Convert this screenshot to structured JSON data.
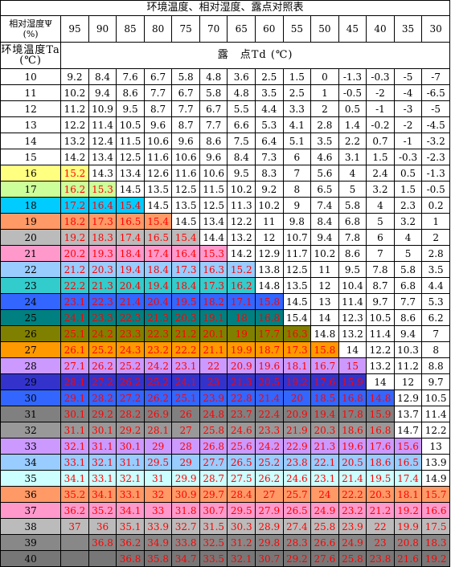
{
  "title": "环境温度、相对湿度、露点对照表",
  "rh_label": "相对湿度Ψ\n(%)",
  "ta_label": "环境温度Ta\n(℃)",
  "td_label": "露　点Td (℃)",
  "humidity": [
    "95",
    "90",
    "85",
    "80",
    "75",
    "70",
    "65",
    "60",
    "55",
    "50",
    "45",
    "40",
    "35",
    "30"
  ],
  "rows": [
    {
      "t": "10",
      "c": "#ffffff",
      "v": [
        "9.2",
        "8.4",
        "7.6",
        "6.7",
        "5.8",
        "4.8",
        "3.6",
        "2.5",
        "1.5",
        "0",
        "-1.3",
        "-0.3",
        "-5",
        "-7"
      ],
      "n": 0
    },
    {
      "t": "11",
      "c": "#ffffff",
      "v": [
        "10.2",
        "9.4",
        "8.6",
        "7.7",
        "6.7",
        "5.8",
        "4.8",
        "3.5",
        "2.5",
        "1",
        "-0.5",
        "-2",
        "-4",
        "-6.5"
      ],
      "n": 0
    },
    {
      "t": "12",
      "c": "#ffffff",
      "v": [
        "11.2",
        "10.9",
        "9.5",
        "8.7",
        "7.7",
        "6.7",
        "5.5",
        "4.4",
        "3.3",
        "2",
        "0.5",
        "-1",
        "-3",
        "-5"
      ],
      "n": 0
    },
    {
      "t": "13",
      "c": "#ffffff",
      "v": [
        "12.2",
        "11.4",
        "10.5",
        "9.6",
        "8.7",
        "7.7",
        "6.6",
        "5.3",
        "4.1",
        "2.8",
        "1.4",
        "-0.2",
        "-2",
        "-4.5"
      ],
      "n": 0
    },
    {
      "t": "14",
      "c": "#ffffff",
      "v": [
        "13.2",
        "12.4",
        "11.5",
        "10.6",
        "9.6",
        "8.6",
        "7.5",
        "6.4",
        "5.1",
        "3.5",
        "2.2",
        "0.7",
        "-1",
        "-3.2"
      ],
      "n": 0
    },
    {
      "t": "15",
      "c": "#ffffff",
      "v": [
        "14.2",
        "13.4",
        "12.5",
        "11.6",
        "10.6",
        "9.6",
        "8.4",
        "7.3",
        "6",
        "4.6",
        "3.1",
        "1.5",
        "-0.3",
        "-2.3"
      ],
      "n": 0
    },
    {
      "t": "16",
      "c": "#ffff80",
      "v": [
        "15.2",
        "14.3",
        "13.4",
        "12.6",
        "11.6",
        "10.6",
        "9.5",
        "8.3",
        "7",
        "5.6",
        "4",
        "2.4",
        "0.5",
        "-1.3"
      ],
      "n": 1
    },
    {
      "t": "17",
      "c": "#ccff99",
      "v": [
        "16.2",
        "15.3",
        "14.5",
        "13.5",
        "12.5",
        "11.5",
        "10.2",
        "9.2",
        "8",
        "6.5",
        "5",
        "3.2",
        "1.5",
        "-0.5"
      ],
      "n": 2
    },
    {
      "t": "18",
      "c": "#00ccff",
      "v": [
        "17.2",
        "16.4",
        "15.4",
        "14.5",
        "13.5",
        "12.5",
        "11.3",
        "10.2",
        "9",
        "7.4",
        "5.8",
        "4",
        "2.3",
        "0.2"
      ],
      "n": 3
    },
    {
      "t": "19",
      "c": "#ff9966",
      "v": [
        "18.2",
        "17.3",
        "16.5",
        "15.4",
        "14.5",
        "13.4",
        "12.2",
        "11",
        "9.8",
        "8.4",
        "6.8",
        "5",
        "3.2",
        "1"
      ],
      "n": 4
    },
    {
      "t": "20",
      "c": "#bbbbbb",
      "v": [
        "19.2",
        "18.3",
        "17.4",
        "16.5",
        "15.4",
        "14.4",
        "13.2",
        "12",
        "10.7",
        "9.4",
        "7.8",
        "6",
        "4",
        "2"
      ],
      "n": 5
    },
    {
      "t": "21",
      "c": "#ff99cc",
      "v": [
        "20.2",
        "19.3",
        "18.4",
        "17.4",
        "16.4",
        "15.3",
        "14.2",
        "12.9",
        "11.7",
        "10.2",
        "8.6",
        "7",
        "5",
        "2.8"
      ],
      "n": 6
    },
    {
      "t": "22",
      "c": "#99ccff",
      "v": [
        "21.2",
        "20.3",
        "19.4",
        "18.4",
        "17.3",
        "16.3",
        "15.2",
        "13.8",
        "12.5",
        "11",
        "9.5",
        "7.8",
        "5.8",
        "3.5"
      ],
      "n": 7
    },
    {
      "t": "23",
      "c": "#33cccc",
      "v": [
        "22.2",
        "21.3",
        "20.4",
        "19.4",
        "18.4",
        "17.3",
        "16.2",
        "14.8",
        "13.5",
        "12",
        "10.4",
        "8.7",
        "6.8",
        "4.4"
      ],
      "n": 7
    },
    {
      "t": "24",
      "c": "#3366ff",
      "v": [
        "23.1",
        "22.3",
        "21.4",
        "20.4",
        "19.5",
        "18.2",
        "17.1",
        "15.8",
        "14.5",
        "13",
        "11.4",
        "9.7",
        "7.7",
        "5.3"
      ],
      "n": 8
    },
    {
      "t": "25",
      "c": "#008080",
      "v": [
        "24.1",
        "23.3",
        "22.3",
        "21.3",
        "20.3",
        "19.1",
        "18",
        "16.8",
        "15.4",
        "14",
        "12.3",
        "10.5",
        "8.6",
        "6.2"
      ],
      "n": 8
    },
    {
      "t": "26",
      "c": "#808000",
      "v": [
        "25.1",
        "24.2",
        "23.3",
        "22.3",
        "21.2",
        "20.1",
        "19",
        "17.7",
        "16.3",
        "14.8",
        "13.2",
        "11.4",
        "9.4",
        "7"
      ],
      "n": 9
    },
    {
      "t": "27",
      "c": "#ff9900",
      "v": [
        "26.1",
        "25.2",
        "24.3",
        "23.2",
        "22.2",
        "21.1",
        "19.9",
        "18.7",
        "17.3",
        "15.8",
        "14",
        "12.2",
        "10.3",
        "8"
      ],
      "n": 10
    },
    {
      "t": "28",
      "c": "#cc99ff",
      "v": [
        "27.1",
        "26.2",
        "25.2",
        "24.2",
        "23.1",
        "22",
        "20.9",
        "19.6",
        "18.1",
        "16.7",
        "15",
        "13.2",
        "11.2",
        "8.8"
      ],
      "n": 11
    },
    {
      "t": "29",
      "c": "#3333cc",
      "v": [
        "28.1",
        "27.2",
        "26.2",
        "25.2",
        "24.1",
        "23",
        "21.3",
        "20.5",
        "19.2",
        "17.6",
        "15.9",
        "14",
        "12",
        "9.7"
      ],
      "n": 11
    },
    {
      "t": "30",
      "c": "#3366ff",
      "v": [
        "29.1",
        "28.2",
        "27.2",
        "26.2",
        "25.1",
        "23.9",
        "22.8",
        "21.4",
        "20",
        "18.5",
        "16.8",
        "14.8",
        "12.9",
        "10.5"
      ],
      "n": 12
    },
    {
      "t": "31",
      "c": "#808080",
      "v": [
        "30.1",
        "29.2",
        "28.2",
        "26.9",
        "26",
        "24.8",
        "23.7",
        "22.4",
        "20.9",
        "19.4",
        "17.8",
        "15.9",
        "13.7",
        "11.4"
      ],
      "n": 12
    },
    {
      "t": "32",
      "c": "#999999",
      "v": [
        "31.1",
        "30.1",
        "29.2",
        "28.1",
        "27",
        "25.8",
        "24.6",
        "23.3",
        "21.9",
        "20.3",
        "18.6",
        "16.8",
        "14.7",
        "12.2"
      ],
      "n": 12
    },
    {
      "t": "33",
      "c": "#cc99ff",
      "v": [
        "32.1",
        "31.1",
        "30.1",
        "29",
        "28",
        "26.8",
        "25.6",
        "24.2",
        "22.9",
        "21.3",
        "19.6",
        "17.6",
        "15.6",
        "13"
      ],
      "n": 13
    },
    {
      "t": "34",
      "c": "#99ccff",
      "v": [
        "33.1",
        "32.1",
        "31.1",
        "29.5",
        "29",
        "27.7",
        "26.5",
        "25.2",
        "23.8",
        "22.1",
        "20.5",
        "18.6",
        "16.5",
        "13.9"
      ],
      "n": 13
    },
    {
      "t": "35",
      "c": "#ccffff",
      "v": [
        "34.1",
        "33.1",
        "32.1",
        "31",
        "29.9",
        "28.7",
        "27.5",
        "26.2",
        "24.6",
        "23.1",
        "21.4",
        "19.5",
        "17.4",
        "14.9"
      ],
      "n": 13
    },
    {
      "t": "36",
      "c": "#ff9966",
      "v": [
        "35.2",
        "34.1",
        "33.1",
        "32",
        "30.9",
        "29.7",
        "28.4",
        "27",
        "25.7",
        "24",
        "22.2",
        "20.3",
        "18.1",
        "15.7"
      ],
      "n": 14
    },
    {
      "t": "37",
      "c": "#ff99cc",
      "v": [
        "36.2",
        "35.2",
        "34.1",
        "33",
        "31.8",
        "30.7",
        "29.5",
        "27.9",
        "26.5",
        "24.9",
        "23.2",
        "21.2",
        "19.2",
        "16.6"
      ],
      "n": 14
    },
    {
      "t": "38",
      "c": "#bbbbbb",
      "v": [
        "37",
        "36",
        "35.1",
        "33.9",
        "32.7",
        "31.5",
        "30.3",
        "28.9",
        "27.4",
        "25.8",
        "23.9",
        "22",
        "19.9",
        "17.5"
      ],
      "n": 14
    },
    {
      "t": "39",
      "c": "#888888",
      "v": [
        "",
        "36.8",
        "36.2",
        "34.9",
        "33.8",
        "32.5",
        "31.2",
        "29.8",
        "28.3",
        "26.6",
        "24.9",
        "23",
        "20.8",
        "18.3"
      ],
      "n": 14
    },
    {
      "t": "40",
      "c": "#777777",
      "v": [
        "",
        "",
        "36.8",
        "35.8",
        "34.7",
        "33.5",
        "32.1",
        "30.7",
        "29.2",
        "27.6",
        "25.8",
        "23.8",
        "21.6",
        "19.2"
      ],
      "n": 14
    }
  ]
}
